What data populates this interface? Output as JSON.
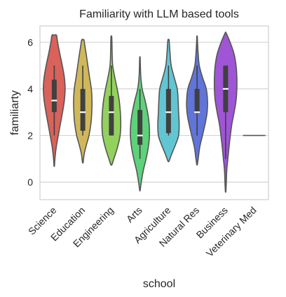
{
  "chart_data": {
    "type": "violin",
    "title": "Familiarity with LLM based tools",
    "xlabel": "school",
    "ylabel": "familiarty",
    "ylim": [
      -0.75,
      6.7
    ],
    "yticks": [
      0,
      2,
      4,
      6
    ],
    "grid": true,
    "categories": [
      "Science",
      "Education",
      "Engineering",
      "Arts",
      "Agriculture",
      "Natural Res",
      "Business",
      "Veterinary Med"
    ],
    "series": [
      {
        "category": "Science",
        "color": "#d9625a",
        "min": 0.7,
        "max": 6.3,
        "whisker_low": 2,
        "whisker_high": 5,
        "q1": 3,
        "median": 3.5,
        "q3": 4.4,
        "density": [
          [
            0.7,
            0.02
          ],
          [
            1.0,
            0.06
          ],
          [
            1.5,
            0.18
          ],
          [
            2.0,
            0.36
          ],
          [
            2.5,
            0.55
          ],
          [
            3.0,
            0.74
          ],
          [
            3.5,
            0.9
          ],
          [
            4.0,
            0.97
          ],
          [
            4.5,
            0.9
          ],
          [
            5.0,
            0.72
          ],
          [
            5.5,
            0.5
          ],
          [
            6.0,
            0.3
          ],
          [
            6.3,
            0.2
          ]
        ]
      },
      {
        "category": "Education",
        "color": "#d0b85a",
        "min": 0.85,
        "max": 6.1,
        "whisker_low": 2,
        "whisker_high": 5,
        "q1": 2.2,
        "median": 3,
        "q3": 4,
        "density": [
          [
            0.85,
            0.03
          ],
          [
            1.2,
            0.12
          ],
          [
            1.6,
            0.32
          ],
          [
            2.0,
            0.55
          ],
          [
            2.5,
            0.72
          ],
          [
            3.0,
            0.8
          ],
          [
            3.5,
            0.82
          ],
          [
            4.0,
            0.76
          ],
          [
            4.5,
            0.6
          ],
          [
            5.0,
            0.45
          ],
          [
            5.5,
            0.3
          ],
          [
            5.8,
            0.2
          ],
          [
            6.1,
            0.1
          ]
        ]
      },
      {
        "category": "Engineering",
        "color": "#93d15e",
        "min": 0.75,
        "max": 6.25,
        "whisker_low": 2,
        "whisker_high": 5,
        "q1": 2,
        "median": 3,
        "q3": 3.7,
        "density": [
          [
            0.75,
            0.05
          ],
          [
            1.0,
            0.22
          ],
          [
            1.5,
            0.55
          ],
          [
            2.0,
            0.78
          ],
          [
            2.5,
            0.84
          ],
          [
            3.0,
            0.8
          ],
          [
            3.5,
            0.7
          ],
          [
            4.0,
            0.52
          ],
          [
            4.5,
            0.3
          ],
          [
            5.0,
            0.12
          ],
          [
            5.5,
            0.07
          ],
          [
            6.0,
            0.05
          ],
          [
            6.25,
            0.03
          ]
        ]
      },
      {
        "category": "Arts",
        "color": "#5ed17a",
        "min": -0.35,
        "max": 5.35,
        "whisker_low": 1,
        "whisker_high": 4,
        "q1": 1.6,
        "median": 2,
        "q3": 3.1,
        "density": [
          [
            -0.35,
            0.02
          ],
          [
            0,
            0.12
          ],
          [
            0.5,
            0.3
          ],
          [
            1.0,
            0.55
          ],
          [
            1.5,
            0.75
          ],
          [
            2.0,
            0.85
          ],
          [
            2.5,
            0.82
          ],
          [
            3.0,
            0.68
          ],
          [
            3.5,
            0.46
          ],
          [
            4.0,
            0.2
          ],
          [
            4.5,
            0.08
          ],
          [
            5.0,
            0.04
          ],
          [
            5.35,
            0.02
          ]
        ]
      },
      {
        "category": "Agriculture",
        "color": "#62c6d2",
        "min": 0.9,
        "max": 6.1,
        "whisker_low": 2,
        "whisker_high": 5,
        "q1": 2.1,
        "median": 3,
        "q3": 4,
        "density": [
          [
            0.9,
            0.05
          ],
          [
            1.2,
            0.28
          ],
          [
            1.6,
            0.62
          ],
          [
            2.0,
            0.9
          ],
          [
            2.5,
            0.95
          ],
          [
            3.0,
            0.9
          ],
          [
            3.5,
            0.86
          ],
          [
            4.0,
            0.78
          ],
          [
            4.5,
            0.5
          ],
          [
            5.0,
            0.24
          ],
          [
            5.5,
            0.14
          ],
          [
            5.8,
            0.1
          ],
          [
            6.1,
            0.05
          ]
        ]
      },
      {
        "category": "Natural Res",
        "color": "#6174d9",
        "min": 0.75,
        "max": 6.25,
        "whisker_low": 2,
        "whisker_high": 5,
        "q1": 3,
        "median": 3,
        "q3": 4,
        "density": [
          [
            0.75,
            0.02
          ],
          [
            1.0,
            0.1
          ],
          [
            1.5,
            0.24
          ],
          [
            2.0,
            0.48
          ],
          [
            2.5,
            0.72
          ],
          [
            3.0,
            0.9
          ],
          [
            3.5,
            0.93
          ],
          [
            4.0,
            0.82
          ],
          [
            4.5,
            0.48
          ],
          [
            5.0,
            0.2
          ],
          [
            5.5,
            0.1
          ],
          [
            6.0,
            0.04
          ],
          [
            6.25,
            0.02
          ]
        ]
      },
      {
        "category": "Business",
        "color": "#9f55d5",
        "min": -0.4,
        "max": 6.4,
        "whisker_low": 1,
        "whisker_high": 5,
        "q1": 3,
        "median": 4,
        "q3": 5,
        "density": [
          [
            -0.4,
            0.02
          ],
          [
            0,
            0.06
          ],
          [
            0.5,
            0.1
          ],
          [
            1.0,
            0.2
          ],
          [
            1.5,
            0.3
          ],
          [
            2.0,
            0.42
          ],
          [
            2.5,
            0.56
          ],
          [
            3.0,
            0.76
          ],
          [
            3.5,
            0.93
          ],
          [
            4.0,
            1.0
          ],
          [
            4.5,
            1.0
          ],
          [
            5.0,
            0.93
          ],
          [
            5.5,
            0.75
          ],
          [
            6.0,
            0.4
          ],
          [
            6.4,
            0.04
          ]
        ]
      },
      {
        "category": "Veterinary Med",
        "color": "#d45ba3",
        "min": 2,
        "max": 2,
        "whisker_low": 2,
        "whisker_high": 2,
        "q1": 2,
        "median": 2,
        "q3": 2,
        "density": []
      }
    ]
  }
}
